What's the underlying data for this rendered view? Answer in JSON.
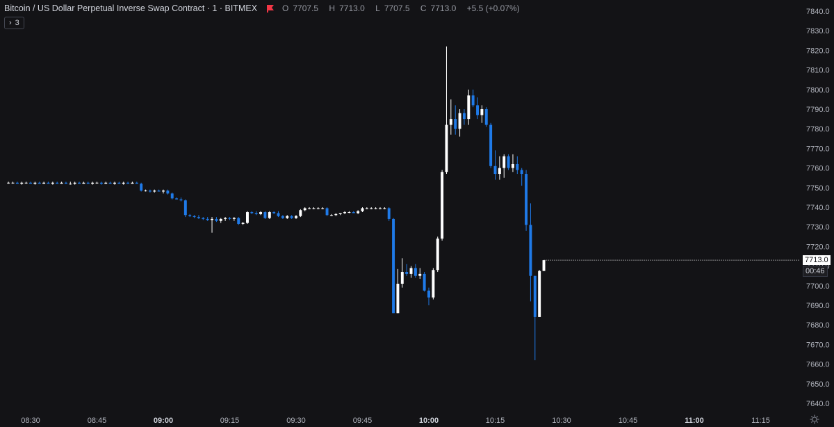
{
  "legend": {
    "symbol": "Bitcoin / US Dollar Perpetual Inverse Swap Contract · 1 · BITMEX",
    "open_label": "O",
    "open": "7707.5",
    "high_label": "H",
    "high": "7713.0",
    "low_label": "L",
    "low": "7707.5",
    "close_label": "C",
    "close": "7713.0",
    "change": "+5.5 (+0.07%)",
    "flag_icon": "red-flag-icon"
  },
  "indicators_counter": {
    "count": "3",
    "icon": "chevron-right-icon"
  },
  "last_price": {
    "value": "7713.0",
    "countdown": "00:46"
  },
  "colors": {
    "up": "#ffffff",
    "down": "#1f7ae8",
    "background": "#131316",
    "text": "#b2b5be"
  },
  "chart_data": {
    "type": "candlestick",
    "interval_minutes": 1,
    "y_ticks": [
      7640,
      7650,
      7660,
      7670,
      7680,
      7690,
      7700,
      7710,
      7720,
      7730,
      7740,
      7750,
      7760,
      7770,
      7780,
      7790,
      7800,
      7810,
      7820,
      7830,
      7840
    ],
    "y_tick_labels": [
      "7640.0",
      "7650.0",
      "7660.0",
      "7670.0",
      "7680.0",
      "7690.0",
      "7700.0",
      "7710.0",
      "7720.0",
      "7730.0",
      "7740.0",
      "7750.0",
      "7760.0",
      "7770.0",
      "7780.0",
      "7790.0",
      "7800.0",
      "7810.0",
      "7820.0",
      "7830.0",
      "7840.0"
    ],
    "ylim": [
      7637,
      7842
    ],
    "x_ticks": [
      {
        "label": "08:30",
        "bold": false
      },
      {
        "label": "08:45",
        "bold": false
      },
      {
        "label": "09:00",
        "bold": true
      },
      {
        "label": "09:15",
        "bold": false
      },
      {
        "label": "09:30",
        "bold": false
      },
      {
        "label": "09:45",
        "bold": false
      },
      {
        "label": "10:00",
        "bold": true
      },
      {
        "label": "10:15",
        "bold": false
      },
      {
        "label": "10:30",
        "bold": false
      },
      {
        "label": "10:45",
        "bold": false
      },
      {
        "label": "11:00",
        "bold": true
      },
      {
        "label": "11:15",
        "bold": false
      }
    ],
    "candles": [
      {
        "t": "08:25",
        "o": 7752.5,
        "h": 7753,
        "l": 7752,
        "c": 7752.5
      },
      {
        "t": "08:26",
        "o": 7752.5,
        "h": 7753,
        "l": 7752,
        "c": 7752.5
      },
      {
        "t": "08:27",
        "o": 7752.5,
        "h": 7753,
        "l": 7752,
        "c": 7752
      },
      {
        "t": "08:28",
        "o": 7752,
        "h": 7753,
        "l": 7751.5,
        "c": 7752.5
      },
      {
        "t": "08:29",
        "o": 7752.5,
        "h": 7753,
        "l": 7752,
        "c": 7752.5
      },
      {
        "t": "08:30",
        "o": 7752.5,
        "h": 7753,
        "l": 7752,
        "c": 7752
      },
      {
        "t": "08:31",
        "o": 7752,
        "h": 7753,
        "l": 7751.5,
        "c": 7752.5
      },
      {
        "t": "08:32",
        "o": 7752.5,
        "h": 7753,
        "l": 7752,
        "c": 7752
      },
      {
        "t": "08:33",
        "o": 7752,
        "h": 7753,
        "l": 7752,
        "c": 7752.5
      },
      {
        "t": "08:34",
        "o": 7752.5,
        "h": 7753,
        "l": 7752,
        "c": 7752
      },
      {
        "t": "08:35",
        "o": 7752,
        "h": 7753,
        "l": 7751.5,
        "c": 7752.5
      },
      {
        "t": "08:36",
        "o": 7752.5,
        "h": 7753,
        "l": 7752,
        "c": 7752
      },
      {
        "t": "08:37",
        "o": 7752,
        "h": 7753,
        "l": 7752,
        "c": 7752.5
      },
      {
        "t": "08:38",
        "o": 7752.5,
        "h": 7753,
        "l": 7752,
        "c": 7752
      },
      {
        "t": "08:39",
        "o": 7752,
        "h": 7753,
        "l": 7751.5,
        "c": 7752
      },
      {
        "t": "08:40",
        "o": 7752,
        "h": 7753,
        "l": 7751.5,
        "c": 7752.5
      },
      {
        "t": "08:41",
        "o": 7752.5,
        "h": 7753,
        "l": 7752,
        "c": 7752
      },
      {
        "t": "08:42",
        "o": 7752,
        "h": 7753,
        "l": 7752,
        "c": 7752.5
      },
      {
        "t": "08:43",
        "o": 7752.5,
        "h": 7753,
        "l": 7752,
        "c": 7752
      },
      {
        "t": "08:44",
        "o": 7752,
        "h": 7753,
        "l": 7751.5,
        "c": 7752.5
      },
      {
        "t": "08:45",
        "o": 7752.5,
        "h": 7753,
        "l": 7752,
        "c": 7752.5
      },
      {
        "t": "08:46",
        "o": 7752.5,
        "h": 7753,
        "l": 7751.5,
        "c": 7752
      },
      {
        "t": "08:47",
        "o": 7752,
        "h": 7753,
        "l": 7752,
        "c": 7752.5
      },
      {
        "t": "08:48",
        "o": 7752.5,
        "h": 7753,
        "l": 7752,
        "c": 7752
      },
      {
        "t": "08:49",
        "o": 7752,
        "h": 7753,
        "l": 7751.5,
        "c": 7752.5
      },
      {
        "t": "08:50",
        "o": 7752.5,
        "h": 7753,
        "l": 7752,
        "c": 7752
      },
      {
        "t": "08:51",
        "o": 7752,
        "h": 7753,
        "l": 7751.5,
        "c": 7752.5
      },
      {
        "t": "08:52",
        "o": 7752.5,
        "h": 7753,
        "l": 7752,
        "c": 7752
      },
      {
        "t": "08:53",
        "o": 7752,
        "h": 7753,
        "l": 7752,
        "c": 7752.5
      },
      {
        "t": "08:54",
        "o": 7752.5,
        "h": 7753,
        "l": 7752,
        "c": 7752
      },
      {
        "t": "08:55",
        "o": 7752,
        "h": 7752.5,
        "l": 7748,
        "c": 7748.5
      },
      {
        "t": "08:56",
        "o": 7748.5,
        "h": 7749,
        "l": 7748,
        "c": 7748.5
      },
      {
        "t": "08:57",
        "o": 7748.5,
        "h": 7749,
        "l": 7747.5,
        "c": 7748
      },
      {
        "t": "08:58",
        "o": 7748,
        "h": 7749,
        "l": 7747.5,
        "c": 7748.5
      },
      {
        "t": "08:59",
        "o": 7748.5,
        "h": 7749,
        "l": 7748,
        "c": 7748
      },
      {
        "t": "09:00",
        "o": 7748,
        "h": 7749,
        "l": 7747,
        "c": 7748.5
      },
      {
        "t": "09:01",
        "o": 7748.5,
        "h": 7749,
        "l": 7746.5,
        "c": 7747
      },
      {
        "t": "09:02",
        "o": 7747,
        "h": 7747.5,
        "l": 7744,
        "c": 7744.5
      },
      {
        "t": "09:03",
        "o": 7744.5,
        "h": 7745,
        "l": 7744,
        "c": 7744
      },
      {
        "t": "09:04",
        "o": 7744,
        "h": 7745,
        "l": 7743,
        "c": 7743.5
      },
      {
        "t": "09:05",
        "o": 7743.5,
        "h": 7744,
        "l": 7735,
        "c": 7736
      },
      {
        "t": "09:06",
        "o": 7736,
        "h": 7736.5,
        "l": 7735,
        "c": 7735.5
      },
      {
        "t": "09:07",
        "o": 7735.5,
        "h": 7736,
        "l": 7734.5,
        "c": 7735
      },
      {
        "t": "09:08",
        "o": 7735,
        "h": 7736,
        "l": 7734,
        "c": 7734.5
      },
      {
        "t": "09:09",
        "o": 7734.5,
        "h": 7735,
        "l": 7733.5,
        "c": 7734
      },
      {
        "t": "09:10",
        "o": 7734,
        "h": 7735,
        "l": 7733,
        "c": 7733.5
      },
      {
        "t": "09:11",
        "o": 7733.5,
        "h": 7735,
        "l": 7727,
        "c": 7734
      },
      {
        "t": "09:12",
        "o": 7734,
        "h": 7735,
        "l": 7732.5,
        "c": 7733
      },
      {
        "t": "09:13",
        "o": 7733,
        "h": 7734.5,
        "l": 7732,
        "c": 7734
      },
      {
        "t": "09:14",
        "o": 7734,
        "h": 7735,
        "l": 7733,
        "c": 7734.5
      },
      {
        "t": "09:15",
        "o": 7734.5,
        "h": 7735,
        "l": 7733.5,
        "c": 7734
      },
      {
        "t": "09:16",
        "o": 7734,
        "h": 7735,
        "l": 7733,
        "c": 7734.5
      },
      {
        "t": "09:17",
        "o": 7734.5,
        "h": 7735,
        "l": 7731,
        "c": 7731.5
      },
      {
        "t": "09:18",
        "o": 7731.5,
        "h": 7732.5,
        "l": 7731,
        "c": 7732
      },
      {
        "t": "09:19",
        "o": 7732,
        "h": 7738,
        "l": 7731.5,
        "c": 7737.5
      },
      {
        "t": "09:20",
        "o": 7737.5,
        "h": 7738,
        "l": 7736.5,
        "c": 7737
      },
      {
        "t": "09:21",
        "o": 7737,
        "h": 7738,
        "l": 7736,
        "c": 7736.5
      },
      {
        "t": "09:22",
        "o": 7736.5,
        "h": 7738,
        "l": 7736,
        "c": 7737.5
      },
      {
        "t": "09:23",
        "o": 7737.5,
        "h": 7738,
        "l": 7734,
        "c": 7734.5
      },
      {
        "t": "09:24",
        "o": 7734.5,
        "h": 7738,
        "l": 7734,
        "c": 7737.5
      },
      {
        "t": "09:25",
        "o": 7737.5,
        "h": 7738,
        "l": 7736.5,
        "c": 7737
      },
      {
        "t": "09:26",
        "o": 7737,
        "h": 7738,
        "l": 7735,
        "c": 7735.5
      },
      {
        "t": "09:27",
        "o": 7735.5,
        "h": 7736,
        "l": 7734,
        "c": 7734.5
      },
      {
        "t": "09:28",
        "o": 7734.5,
        "h": 7736,
        "l": 7734,
        "c": 7735.5
      },
      {
        "t": "09:29",
        "o": 7735.5,
        "h": 7736,
        "l": 7734,
        "c": 7734.5
      },
      {
        "t": "09:30",
        "o": 7734.5,
        "h": 7736,
        "l": 7734,
        "c": 7735.5
      },
      {
        "t": "09:31",
        "o": 7735.5,
        "h": 7739,
        "l": 7735,
        "c": 7738.5
      },
      {
        "t": "09:32",
        "o": 7738.5,
        "h": 7740,
        "l": 7738,
        "c": 7739.5
      },
      {
        "t": "09:33",
        "o": 7739.5,
        "h": 7740,
        "l": 7739,
        "c": 7739.5
      },
      {
        "t": "09:34",
        "o": 7739.5,
        "h": 7740,
        "l": 7739,
        "c": 7739.5
      },
      {
        "t": "09:35",
        "o": 7739.5,
        "h": 7740,
        "l": 7739,
        "c": 7739.5
      },
      {
        "t": "09:36",
        "o": 7739.5,
        "h": 7740,
        "l": 7739,
        "c": 7739.5
      },
      {
        "t": "09:37",
        "o": 7739.5,
        "h": 7740,
        "l": 7735.5,
        "c": 7736
      },
      {
        "t": "09:38",
        "o": 7736,
        "h": 7736.5,
        "l": 7735.5,
        "c": 7736
      },
      {
        "t": "09:39",
        "o": 7736,
        "h": 7737,
        "l": 7735.5,
        "c": 7736.5
      },
      {
        "t": "09:40",
        "o": 7736.5,
        "h": 7737,
        "l": 7736,
        "c": 7737
      },
      {
        "t": "09:41",
        "o": 7737,
        "h": 7738,
        "l": 7736.5,
        "c": 7737.5
      },
      {
        "t": "09:42",
        "o": 7737.5,
        "h": 7738,
        "l": 7737,
        "c": 7737.5
      },
      {
        "t": "09:43",
        "o": 7737.5,
        "h": 7738,
        "l": 7737,
        "c": 7737
      },
      {
        "t": "09:44",
        "o": 7737,
        "h": 7738.5,
        "l": 7736.5,
        "c": 7738
      },
      {
        "t": "09:45",
        "o": 7738,
        "h": 7740,
        "l": 7737.5,
        "c": 7739.5
      },
      {
        "t": "09:46",
        "o": 7739.5,
        "h": 7740,
        "l": 7739,
        "c": 7739.5
      },
      {
        "t": "09:47",
        "o": 7739.5,
        "h": 7740,
        "l": 7739,
        "c": 7739.5
      },
      {
        "t": "09:48",
        "o": 7739.5,
        "h": 7740,
        "l": 7739,
        "c": 7739.5
      },
      {
        "t": "09:49",
        "o": 7739.5,
        "h": 7740,
        "l": 7739,
        "c": 7739.5
      },
      {
        "t": "09:50",
        "o": 7739.5,
        "h": 7740,
        "l": 7739,
        "c": 7739.5
      },
      {
        "t": "09:51",
        "o": 7739.5,
        "h": 7740,
        "l": 7733,
        "c": 7734
      },
      {
        "t": "09:52",
        "o": 7734,
        "h": 7734.5,
        "l": 7686,
        "c": 7686
      },
      {
        "t": "09:53",
        "o": 7686,
        "h": 7708.5,
        "l": 7686,
        "c": 7701
      },
      {
        "t": "09:54",
        "o": 7701,
        "h": 7714,
        "l": 7699,
        "c": 7707
      },
      {
        "t": "09:55",
        "o": 7707,
        "h": 7711,
        "l": 7705,
        "c": 7706
      },
      {
        "t": "09:56",
        "o": 7706,
        "h": 7710,
        "l": 7704,
        "c": 7709
      },
      {
        "t": "09:57",
        "o": 7709,
        "h": 7711,
        "l": 7704,
        "c": 7705
      },
      {
        "t": "09:58",
        "o": 7705,
        "h": 7709,
        "l": 7703.5,
        "c": 7706
      },
      {
        "t": "09:59",
        "o": 7706,
        "h": 7707,
        "l": 7697,
        "c": 7697.5
      },
      {
        "t": "10:00",
        "o": 7697.5,
        "h": 7699,
        "l": 7690,
        "c": 7694
      },
      {
        "t": "10:01",
        "o": 7694,
        "h": 7709,
        "l": 7693,
        "c": 7708
      },
      {
        "t": "10:02",
        "o": 7708,
        "h": 7725,
        "l": 7707,
        "c": 7724
      },
      {
        "t": "10:03",
        "o": 7724,
        "h": 7759,
        "l": 7723,
        "c": 7758
      },
      {
        "t": "10:04",
        "o": 7758,
        "h": 7822,
        "l": 7757,
        "c": 7782
      },
      {
        "t": "10:05",
        "o": 7782,
        "h": 7795,
        "l": 7777,
        "c": 7785
      },
      {
        "t": "10:06",
        "o": 7785,
        "h": 7792,
        "l": 7777,
        "c": 7780
      },
      {
        "t": "10:07",
        "o": 7780,
        "h": 7790,
        "l": 7776,
        "c": 7788
      },
      {
        "t": "10:08",
        "o": 7788,
        "h": 7790,
        "l": 7782,
        "c": 7785
      },
      {
        "t": "10:09",
        "o": 7785,
        "h": 7800,
        "l": 7782,
        "c": 7797
      },
      {
        "t": "10:10",
        "o": 7797,
        "h": 7800,
        "l": 7791,
        "c": 7792
      },
      {
        "t": "10:11",
        "o": 7792,
        "h": 7796,
        "l": 7785,
        "c": 7787
      },
      {
        "t": "10:12",
        "o": 7787,
        "h": 7792,
        "l": 7783,
        "c": 7790
      },
      {
        "t": "10:13",
        "o": 7790,
        "h": 7791,
        "l": 7781,
        "c": 7782
      },
      {
        "t": "10:14",
        "o": 7782,
        "h": 7783,
        "l": 7760,
        "c": 7761
      },
      {
        "t": "10:15",
        "o": 7761,
        "h": 7769,
        "l": 7754,
        "c": 7757
      },
      {
        "t": "10:16",
        "o": 7757,
        "h": 7766,
        "l": 7754,
        "c": 7760
      },
      {
        "t": "10:17",
        "o": 7760,
        "h": 7767,
        "l": 7755,
        "c": 7766
      },
      {
        "t": "10:18",
        "o": 7766,
        "h": 7767,
        "l": 7759,
        "c": 7760
      },
      {
        "t": "10:19",
        "o": 7760,
        "h": 7767,
        "l": 7758,
        "c": 7762
      },
      {
        "t": "10:20",
        "o": 7762,
        "h": 7766,
        "l": 7757,
        "c": 7759
      },
      {
        "t": "10:21",
        "o": 7759,
        "h": 7760,
        "l": 7751,
        "c": 7757
      },
      {
        "t": "10:22",
        "o": 7757,
        "h": 7759,
        "l": 7728,
        "c": 7731
      },
      {
        "t": "10:23",
        "o": 7731,
        "h": 7742,
        "l": 7692,
        "c": 7705
      },
      {
        "t": "10:24",
        "o": 7705,
        "h": 7705,
        "l": 7662,
        "c": 7684
      },
      {
        "t": "10:25",
        "o": 7684,
        "h": 7708,
        "l": 7684,
        "c": 7707.5
      },
      {
        "t": "10:26",
        "o": 7707.5,
        "h": 7713,
        "l": 7707.5,
        "c": 7713
      }
    ]
  }
}
